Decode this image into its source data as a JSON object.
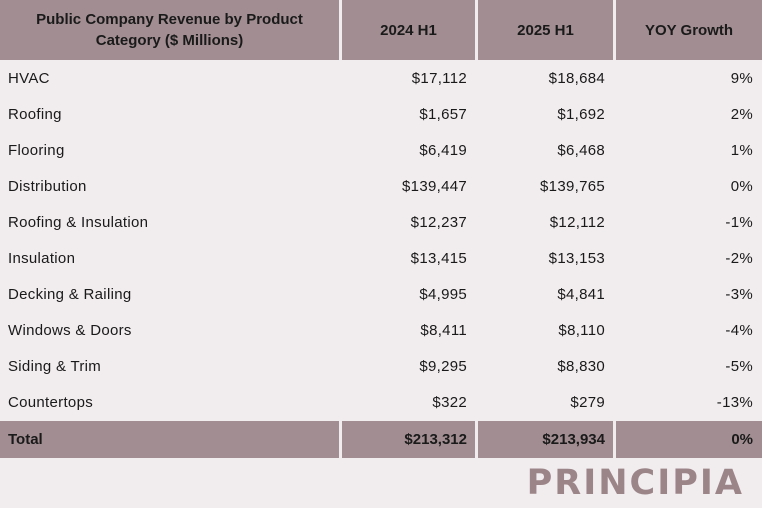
{
  "table": {
    "headers": [
      "Public Company Revenue by Product Category ($ Millions)",
      "2024 H1",
      "2025 H1",
      "YOY Growth"
    ],
    "rows": [
      [
        "HVAC",
        "$17,112",
        "$18,684",
        "9%"
      ],
      [
        "Roofing",
        "$1,657",
        "$1,692",
        "2%"
      ],
      [
        "Flooring",
        "$6,419",
        "$6,468",
        "1%"
      ],
      [
        "Distribution",
        "$139,447",
        "$139,765",
        "0%"
      ],
      [
        "Roofing & Insulation",
        "$12,237",
        "$12,112",
        "-1%"
      ],
      [
        "Insulation",
        "$13,415",
        "$13,153",
        "-2%"
      ],
      [
        "Decking & Railing",
        "$4,995",
        "$4,841",
        "-3%"
      ],
      [
        "Windows & Doors",
        "$8,411",
        "$8,110",
        "-4%"
      ],
      [
        "Siding & Trim",
        "$9,295",
        "$8,830",
        "-5%"
      ],
      [
        "Countertops",
        "$322",
        "$279",
        "-13%"
      ]
    ],
    "total": [
      "Total",
      "$213,312",
      "$213,934",
      "0%"
    ]
  },
  "brand": {
    "logo_text": "PRINCIPIA",
    "logo_color": "#9c8589"
  },
  "colors": {
    "header_bg": "#a28e92",
    "page_bg": "#f1ecee"
  }
}
